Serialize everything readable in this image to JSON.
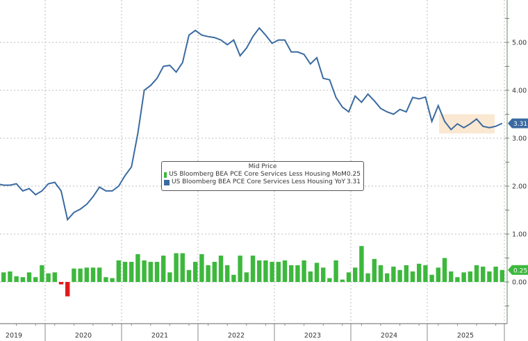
{
  "chart_data": {
    "type": "line+bar",
    "title": "",
    "xlabel": "",
    "ylabel": "",
    "legend_title": "Mid Price",
    "ylim": [
      -0.8,
      5.9
    ],
    "yticks": [
      "5.00",
      "4.00",
      "3.00",
      "2.00",
      "1.00",
      "0.00"
    ],
    "ytick_values": [
      5,
      4,
      3,
      2,
      1,
      0
    ],
    "year_labels": [
      "2019",
      "2020",
      "2021",
      "2022",
      "2023",
      "2024",
      "2025"
    ],
    "series": [
      {
        "name": "US Bloomberg BEA PCE Core Services Less Housing MoM",
        "last": "0.25",
        "color": "#3db83d",
        "negative_color": "#e0191b",
        "type": "bar",
        "values": [
          0.15,
          0.2,
          0.22,
          0.12,
          0.1,
          0.2,
          0.1,
          0.35,
          0.18,
          0.2,
          -0.05,
          -0.3,
          0.28,
          0.28,
          0.3,
          0.3,
          0.3,
          0.1,
          0.08,
          0.45,
          0.42,
          0.42,
          0.58,
          0.45,
          0.42,
          0.42,
          0.55,
          0.2,
          0.6,
          0.6,
          0.25,
          0.42,
          0.58,
          0.35,
          0.42,
          0.55,
          0.35,
          0.15,
          0.55,
          0.2,
          0.55,
          0.45,
          0.45,
          0.42,
          0.42,
          0.45,
          0.35,
          0.35,
          0.45,
          0.22,
          0.4,
          0.3,
          0.08,
          0.45,
          0.05,
          0.2,
          0.3,
          0.75,
          0.18,
          0.48,
          0.35,
          0.18,
          0.32,
          0.25,
          0.35,
          0.22,
          0.38,
          0.35,
          0.15,
          0.3,
          0.5,
          0.22,
          0.1,
          0.2,
          0.22,
          0.35,
          0.32,
          0.22,
          0.32,
          0.25
        ],
        "highlight_last": 0.25
      },
      {
        "name": "US Bloomberg BEA PCE Core Services Less Housing YoY",
        "last": "3.31",
        "color": "#3a6aa0",
        "type": "line",
        "values": [
          2.05,
          2.02,
          2.02,
          2.05,
          1.9,
          1.95,
          1.82,
          1.9,
          2.05,
          2.08,
          1.9,
          1.3,
          1.45,
          1.52,
          1.62,
          1.78,
          1.98,
          1.9,
          1.9,
          2.0,
          2.22,
          2.4,
          3.1,
          4.0,
          4.1,
          4.25,
          4.5,
          4.52,
          4.38,
          4.58,
          5.15,
          5.25,
          5.15,
          5.12,
          5.1,
          5.05,
          4.95,
          5.05,
          4.72,
          4.88,
          5.12,
          5.3,
          5.15,
          4.98,
          5.05,
          5.05,
          4.8,
          4.8,
          4.75,
          4.55,
          4.68,
          4.25,
          4.22,
          3.85,
          3.65,
          3.55,
          3.88,
          3.75,
          3.92,
          3.78,
          3.62,
          3.55,
          3.5,
          3.6,
          3.55,
          3.85,
          3.82,
          3.86,
          3.35,
          3.68,
          3.35,
          3.18,
          3.3,
          3.22,
          3.3,
          3.4,
          3.25,
          3.22,
          3.25,
          3.31
        ]
      }
    ],
    "annotations": [
      {
        "type": "highlight-box",
        "x_range": [
          72,
          79
        ],
        "y_range": [
          3.1,
          3.5
        ],
        "color": "#fbe8d2"
      }
    ]
  },
  "axis": {
    "right_label_yoy": "3.31",
    "right_label_mom": "0.25"
  }
}
